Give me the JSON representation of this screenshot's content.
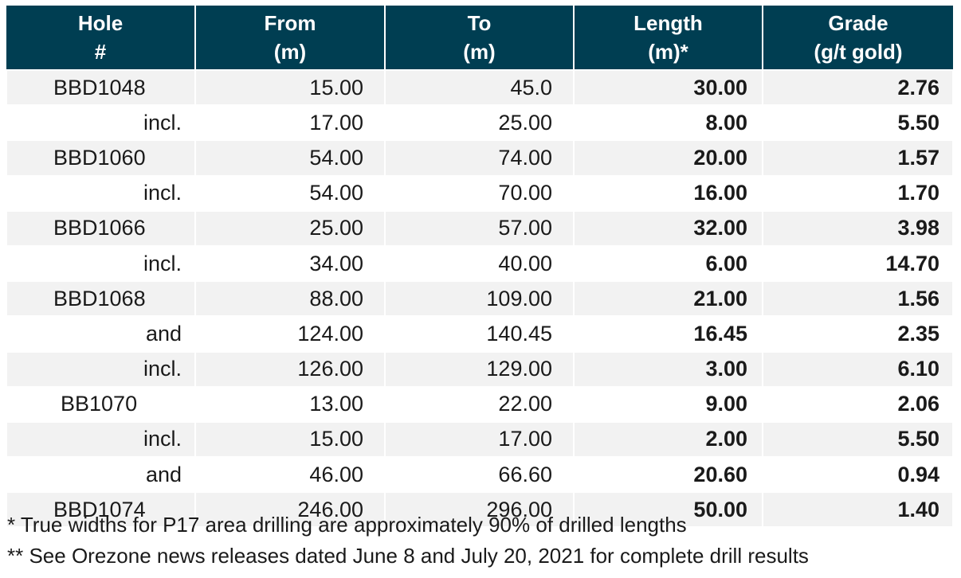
{
  "table": {
    "headers": [
      {
        "line1": "Hole",
        "line2": "#"
      },
      {
        "line1": "From",
        "line2": "(m)"
      },
      {
        "line1": "To",
        "line2": "(m)"
      },
      {
        "line1": "Length",
        "line2": "(m)*"
      },
      {
        "line1": "Grade",
        "line2": "(g/t gold)"
      }
    ],
    "rows": [
      {
        "hole": "BBD1048",
        "from": "15.00",
        "to": "45.0",
        "length": "30.00",
        "grade": "2.76"
      },
      {
        "hole": "incl.",
        "from": "17.00",
        "to": "25.00",
        "length": "8.00",
        "grade": "5.50"
      },
      {
        "hole": "BBD1060",
        "from": "54.00",
        "to": "74.00",
        "length": "20.00",
        "grade": "1.57"
      },
      {
        "hole": "incl.",
        "from": "54.00",
        "to": "70.00",
        "length": "16.00",
        "grade": "1.70"
      },
      {
        "hole": "BBD1066",
        "from": "25.00",
        "to": "57.00",
        "length": "32.00",
        "grade": "3.98"
      },
      {
        "hole": "incl.",
        "from": "34.00",
        "to": "40.00",
        "length": "6.00",
        "grade": "14.70"
      },
      {
        "hole": "BBD1068",
        "from": "88.00",
        "to": "109.00",
        "length": "21.00",
        "grade": "1.56"
      },
      {
        "hole": "and",
        "from": "124.00",
        "to": "140.45",
        "length": "16.45",
        "grade": "2.35"
      },
      {
        "hole": "incl.",
        "from": "126.00",
        "to": "129.00",
        "length": "3.00",
        "grade": "6.10"
      },
      {
        "hole": "BB1070",
        "from": "13.00",
        "to": "22.00",
        "length": "9.00",
        "grade": "2.06"
      },
      {
        "hole": "incl.",
        "from": "15.00",
        "to": "17.00",
        "length": "2.00",
        "grade": "5.50"
      },
      {
        "hole": "and",
        "from": "46.00",
        "to": "66.60",
        "length": "20.60",
        "grade": "0.94"
      },
      {
        "hole": "BBD1074",
        "from": "246.00",
        "to": "296.00",
        "length": "50.00",
        "grade": "1.40"
      }
    ]
  },
  "footnotes": {
    "note1": "* True widths for P17 area drilling are approximately 90% of drilled lengths",
    "note2": "** See Orezone news releases dated June 8 and July 20, 2021 for complete drill results"
  },
  "colors": {
    "header_bg": "#003e52",
    "header_text": "#ffffff",
    "row_band": "#f2f2f2"
  }
}
